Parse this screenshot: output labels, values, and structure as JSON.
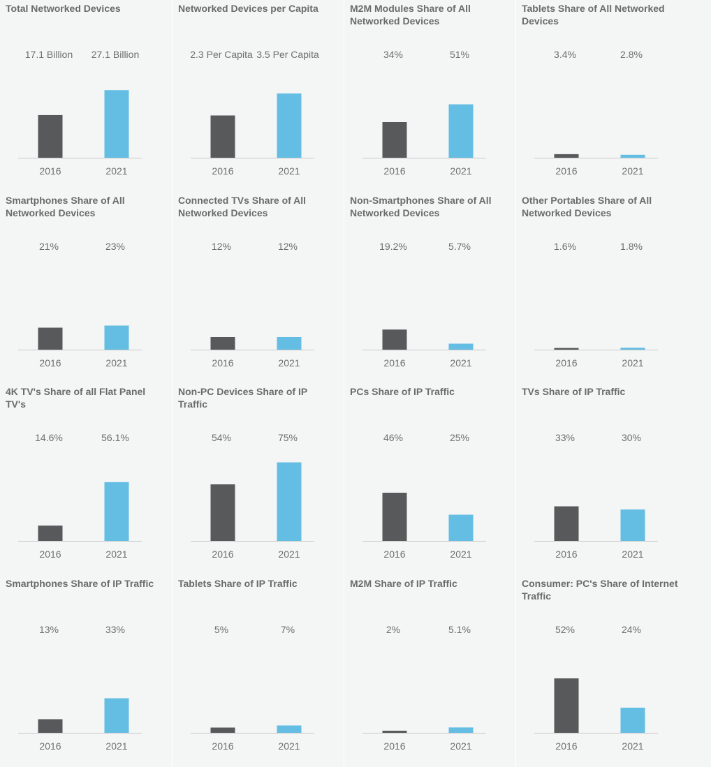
{
  "colors": {
    "y2016": "#58595b",
    "y2021": "#64bde3",
    "axis": "#c8c8c8"
  },
  "chart_data": [
    {
      "type": "bar",
      "title": "Total Networked Devices",
      "categories": [
        "2016",
        "2021"
      ],
      "values": [
        17.1,
        27.1
      ],
      "value_labels": [
        "17.1 Billion",
        "27.1 Billion"
      ],
      "ylim": [
        0,
        42
      ]
    },
    {
      "type": "bar",
      "title": "Networked Devices per Capita",
      "categories": [
        "2016",
        "2021"
      ],
      "values": [
        2.3,
        3.5
      ],
      "value_labels": [
        "2.3 Per Capita",
        "3.5 Per Capita"
      ],
      "ylim": [
        0,
        5.7
      ]
    },
    {
      "type": "bar",
      "title": "M2M Modules Share of All Networked Devices",
      "categories": [
        "2016",
        "2021"
      ],
      "values": [
        34,
        51
      ],
      "value_labels": [
        "34%",
        "51%"
      ],
      "ylim": [
        0,
        100
      ]
    },
    {
      "type": "bar",
      "title": "Tablets Share of All Networked Devices",
      "categories": [
        "2016",
        "2021"
      ],
      "values": [
        3.4,
        2.8
      ],
      "value_labels": [
        "3.4%",
        "2.8%"
      ],
      "ylim": [
        0,
        100
      ]
    },
    {
      "type": "bar",
      "title": "Smartphones Share of All Networked Devices",
      "categories": [
        "2016",
        "2021"
      ],
      "values": [
        21,
        23
      ],
      "value_labels": [
        "21%",
        "23%"
      ],
      "ylim": [
        0,
        100
      ]
    },
    {
      "type": "bar",
      "title": "Connected TVs Share of All Networked Devices",
      "categories": [
        "2016",
        "2021"
      ],
      "values": [
        12,
        12
      ],
      "value_labels": [
        "12%",
        "12%"
      ],
      "ylim": [
        0,
        100
      ]
    },
    {
      "type": "bar",
      "title": "Non-Smartphones Share of All Networked Devices",
      "categories": [
        "2016",
        "2021"
      ],
      "values": [
        19.2,
        5.7
      ],
      "value_labels": [
        "19.2%",
        "5.7%"
      ],
      "ylim": [
        0,
        100
      ]
    },
    {
      "type": "bar",
      "title": "Other Portables Share of All Networked Devices",
      "categories": [
        "2016",
        "2021"
      ],
      "values": [
        1.6,
        1.8
      ],
      "value_labels": [
        "1.6%",
        "1.8%"
      ],
      "ylim": [
        0,
        100
      ]
    },
    {
      "type": "bar",
      "title": "4K TV's Share of all Flat Panel TV's",
      "categories": [
        "2016",
        "2021"
      ],
      "values": [
        14.6,
        56.1
      ],
      "value_labels": [
        "14.6%",
        "56.1%"
      ],
      "ylim": [
        0,
        100
      ]
    },
    {
      "type": "bar",
      "title": "Non-PC Devices Share of IP Traffic",
      "categories": [
        "2016",
        "2021"
      ],
      "values": [
        54,
        75
      ],
      "value_labels": [
        "54%",
        "75%"
      ],
      "ylim": [
        0,
        100
      ]
    },
    {
      "type": "bar",
      "title": "PCs Share of IP Traffic",
      "categories": [
        "2016",
        "2021"
      ],
      "values": [
        46,
        25
      ],
      "value_labels": [
        "46%",
        "25%"
      ],
      "ylim": [
        0,
        100
      ]
    },
    {
      "type": "bar",
      "title": "TVs Share of IP Traffic",
      "categories": [
        "2016",
        "2021"
      ],
      "values": [
        33,
        30
      ],
      "value_labels": [
        "33%",
        "30%"
      ],
      "ylim": [
        0,
        100
      ]
    },
    {
      "type": "bar",
      "title": "Smartphones Share of IP Traffic",
      "categories": [
        "2016",
        "2021"
      ],
      "values": [
        13,
        33
      ],
      "value_labels": [
        "13%",
        "33%"
      ],
      "ylim": [
        0,
        100
      ]
    },
    {
      "type": "bar",
      "title": "Tablets Share of IP Traffic",
      "categories": [
        "2016",
        "2021"
      ],
      "values": [
        5,
        7
      ],
      "value_labels": [
        "5%",
        "7%"
      ],
      "ylim": [
        0,
        100
      ]
    },
    {
      "type": "bar",
      "title": "M2M Share of IP Traffic",
      "categories": [
        "2016",
        "2021"
      ],
      "values": [
        2,
        5.1
      ],
      "value_labels": [
        "2%",
        "5.1%"
      ],
      "ylim": [
        0,
        100
      ]
    },
    {
      "type": "bar",
      "title": "Consumer: PC's Share of Internet Traffic",
      "categories": [
        "2016",
        "2021"
      ],
      "values": [
        52,
        24
      ],
      "value_labels": [
        "52%",
        "24%"
      ],
      "ylim": [
        0,
        100
      ]
    }
  ]
}
